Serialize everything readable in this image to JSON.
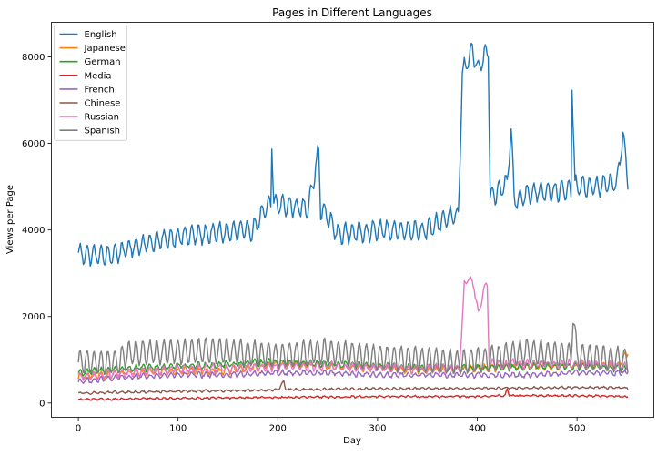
{
  "chart_data": {
    "type": "line",
    "title": "Pages in Different Languages",
    "xlabel": "Day",
    "ylabel": "Views per Page",
    "xlim": [
      -27,
      577
    ],
    "ylim": [
      -330,
      8800
    ],
    "xticks": [
      0,
      100,
      200,
      300,
      400,
      500
    ],
    "yticks": [
      0,
      2000,
      4000,
      6000,
      8000
    ],
    "grid": false,
    "legend_position": "top-left",
    "series": [
      {
        "name": "English",
        "color": "#1f77b4",
        "weekly_amplitude": 220,
        "noise": 60,
        "anchors": [
          [
            0,
            3450
          ],
          [
            30,
            3400
          ],
          [
            60,
            3650
          ],
          [
            100,
            3850
          ],
          [
            150,
            3950
          ],
          [
            175,
            4000
          ],
          [
            185,
            4400
          ],
          [
            193,
            4600
          ],
          [
            194,
            6050
          ],
          [
            196,
            4600
          ],
          [
            230,
            4500
          ],
          [
            241,
            5800
          ],
          [
            243,
            4500
          ],
          [
            250,
            4300
          ],
          [
            260,
            3900
          ],
          [
            300,
            4000
          ],
          [
            350,
            4000
          ],
          [
            370,
            4300
          ],
          [
            381,
            4300
          ],
          [
            385,
            7600
          ],
          [
            395,
            8200
          ],
          [
            400,
            7700
          ],
          [
            405,
            7900
          ],
          [
            411,
            8200
          ],
          [
            413,
            4700
          ],
          [
            430,
            5100
          ],
          [
            434,
            6350
          ],
          [
            437,
            4700
          ],
          [
            460,
            4900
          ],
          [
            480,
            4900
          ],
          [
            494,
            4900
          ],
          [
            495,
            7450
          ],
          [
            498,
            5000
          ],
          [
            520,
            5000
          ],
          [
            540,
            5100
          ],
          [
            546,
            6200
          ],
          [
            551,
            5100
          ]
        ]
      },
      {
        "name": "Japanese",
        "color": "#ff7f0e",
        "weekly_amplitude": 60,
        "noise": 50,
        "anchors": [
          [
            0,
            600
          ],
          [
            50,
            700
          ],
          [
            100,
            750
          ],
          [
            150,
            750
          ],
          [
            190,
            850
          ],
          [
            200,
            900
          ],
          [
            250,
            850
          ],
          [
            300,
            800
          ],
          [
            350,
            750
          ],
          [
            400,
            800
          ],
          [
            450,
            850
          ],
          [
            500,
            850
          ],
          [
            540,
            850
          ],
          [
            551,
            1150
          ]
        ]
      },
      {
        "name": "German",
        "color": "#2ca02c",
        "weekly_amplitude": 60,
        "noise": 40,
        "anchors": [
          [
            0,
            700
          ],
          [
            50,
            800
          ],
          [
            100,
            850
          ],
          [
            150,
            900
          ],
          [
            200,
            950
          ],
          [
            250,
            900
          ],
          [
            300,
            850
          ],
          [
            350,
            800
          ],
          [
            400,
            800
          ],
          [
            450,
            850
          ],
          [
            500,
            850
          ],
          [
            551,
            800
          ]
        ]
      },
      {
        "name": "Media",
        "color": "#d62728",
        "weekly_amplitude": 15,
        "noise": 15,
        "anchors": [
          [
            0,
            80
          ],
          [
            100,
            110
          ],
          [
            200,
            130
          ],
          [
            300,
            150
          ],
          [
            400,
            150
          ],
          [
            428,
            170
          ],
          [
            430,
            330
          ],
          [
            432,
            170
          ],
          [
            500,
            170
          ],
          [
            551,
            150
          ]
        ]
      },
      {
        "name": "French",
        "color": "#9467bd",
        "weekly_amplitude": 50,
        "noise": 30,
        "anchors": [
          [
            0,
            500
          ],
          [
            50,
            600
          ],
          [
            100,
            650
          ],
          [
            150,
            650
          ],
          [
            200,
            700
          ],
          [
            250,
            700
          ],
          [
            300,
            650
          ],
          [
            350,
            650
          ],
          [
            400,
            650
          ],
          [
            450,
            650
          ],
          [
            500,
            700
          ],
          [
            551,
            700
          ]
        ]
      },
      {
        "name": "Chinese",
        "color": "#8c564b",
        "weekly_amplitude": 20,
        "noise": 15,
        "anchors": [
          [
            0,
            230
          ],
          [
            100,
            270
          ],
          [
            200,
            300
          ],
          [
            206,
            500
          ],
          [
            208,
            310
          ],
          [
            300,
            330
          ],
          [
            400,
            340
          ],
          [
            500,
            360
          ],
          [
            551,
            350
          ]
        ]
      },
      {
        "name": "Russian",
        "color": "#e377c2",
        "weekly_amplitude": 80,
        "noise": 50,
        "anchors": [
          [
            0,
            600
          ],
          [
            50,
            700
          ],
          [
            100,
            800
          ],
          [
            150,
            800
          ],
          [
            200,
            850
          ],
          [
            250,
            850
          ],
          [
            300,
            800
          ],
          [
            350,
            800
          ],
          [
            382,
            800
          ],
          [
            387,
            2700
          ],
          [
            392,
            2900
          ],
          [
            397,
            2700
          ],
          [
            401,
            2000
          ],
          [
            405,
            2500
          ],
          [
            410,
            2750
          ],
          [
            412,
            900
          ],
          [
            450,
            900
          ],
          [
            500,
            900
          ],
          [
            551,
            850
          ]
        ]
      },
      {
        "name": "Spanish",
        "color": "#7f7f7f",
        "weekly_amplitude": 280,
        "noise": 40,
        "anchors": [
          [
            0,
            950
          ],
          [
            40,
            950
          ],
          [
            50,
            1150
          ],
          [
            100,
            1200
          ],
          [
            150,
            1200
          ],
          [
            200,
            1100
          ],
          [
            250,
            1200
          ],
          [
            300,
            1050
          ],
          [
            350,
            1000
          ],
          [
            380,
            950
          ],
          [
            420,
            1050
          ],
          [
            450,
            1200
          ],
          [
            494,
            1100
          ],
          [
            496,
            2050
          ],
          [
            500,
            1100
          ],
          [
            551,
            1000
          ]
        ]
      }
    ]
  }
}
